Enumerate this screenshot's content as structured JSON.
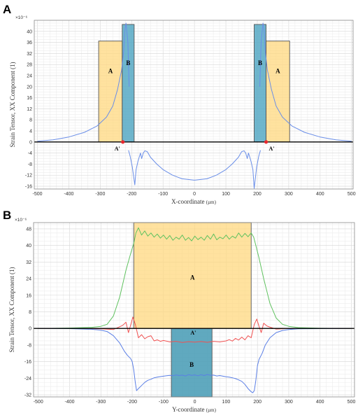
{
  "chart_data": [
    {
      "panel": "A",
      "type": "line",
      "title": "",
      "xlabel": "X-coordinate",
      "xunit": "(µm)",
      "ylabel": "Strain Tensor, XX Component (1)",
      "yexp": "×10⁻⁶",
      "xlim": [
        -510,
        505
      ],
      "ylim": [
        -17,
        44
      ],
      "xticks": [
        -500,
        -400,
        -300,
        -200,
        -100,
        0,
        100,
        200,
        300,
        400,
        500
      ],
      "yticks": [
        -16,
        -12,
        -8,
        -4,
        0,
        4,
        8,
        12,
        16,
        20,
        24,
        28,
        32,
        36,
        40
      ],
      "grid": true,
      "series": [
        {
          "color": "#6a8ee8",
          "x": [
            -500,
            -450,
            -400,
            -350,
            -310,
            -280,
            -260,
            -245,
            -232,
            -225,
            -222,
            -218,
            -212,
            -208
          ],
          "y": [
            0.3,
            0.8,
            1.8,
            3.5,
            5.8,
            9,
            13,
            19,
            26,
            33,
            40,
            43,
            36,
            20
          ]
        },
        {
          "color": "#6a8ee8",
          "x": [
            -210,
            -205,
            -198,
            -190,
            -186,
            -180,
            -172,
            -168,
            -163,
            -158,
            -150,
            -140,
            -120,
            -100,
            -70,
            -40,
            0,
            40,
            70,
            100,
            120,
            140,
            150,
            158,
            163,
            168,
            172,
            180,
            186,
            190,
            198,
            205,
            210
          ],
          "y": [
            -3,
            -5,
            -9,
            -15.5,
            -10,
            -7,
            -4,
            -6,
            -4,
            -3.2,
            -3.5,
            -5.5,
            -8,
            -10,
            -12,
            -13.3,
            -13.8,
            -13.3,
            -12,
            -10,
            -8,
            -5.5,
            -3.5,
            -3.2,
            -4,
            -6,
            -4,
            -7,
            -10,
            -16.8,
            -9,
            -5,
            -3
          ]
        },
        {
          "color": "#6a8ee8",
          "x": [
            208,
            212,
            218,
            222,
            225,
            232,
            245,
            260,
            280,
            310,
            350,
            400,
            450,
            500
          ],
          "y": [
            20,
            36,
            43,
            40,
            33,
            26,
            19,
            13,
            9,
            5.8,
            3.5,
            1.8,
            0.8,
            0.3
          ]
        }
      ],
      "regions": [
        {
          "label": "A",
          "x": [
            -305,
            -230
          ],
          "y": [
            0,
            36.5
          ],
          "fill": "#ffd77a",
          "opacity": 0.72
        },
        {
          "label": "B",
          "x": [
            -230,
            -192
          ],
          "y": [
            0,
            42.5
          ],
          "fill": "#56a9c4",
          "opacity": 0.85
        },
        {
          "label": "B",
          "x": [
            190,
            228
          ],
          "y": [
            0,
            42.5
          ],
          "fill": "#56a9c4",
          "opacity": 0.85
        },
        {
          "label": "A",
          "x": [
            228,
            303
          ],
          "y": [
            0,
            36.5
          ],
          "fill": "#ffd77a",
          "opacity": 0.72
        }
      ],
      "points": [
        {
          "label": "A'",
          "x": -228,
          "y": 0,
          "color": "#e8272e"
        },
        {
          "label": "A'",
          "x": 228,
          "y": 0,
          "color": "#e8272e"
        }
      ]
    },
    {
      "panel": "B",
      "type": "line",
      "title": "",
      "xlabel": "Y-coordinate",
      "xunit": "(µm)",
      "ylabel": "Strain Tensor, XX Component (1)",
      "yexp": "×10⁻⁶",
      "xlim": [
        -515,
        510
      ],
      "ylim": [
        -33,
        51
      ],
      "xticks": [
        -500,
        -400,
        -300,
        -200,
        -100,
        0,
        100,
        200,
        300,
        400,
        500
      ],
      "yticks": [
        -32,
        -24,
        -16,
        -8,
        0,
        8,
        16,
        24,
        32,
        40,
        48
      ],
      "grid": true,
      "series": [
        {
          "color": "#5fc25f",
          "x": [
            -500,
            -400,
            -330,
            -300,
            -280,
            -260,
            -240,
            -220,
            -205,
            -195,
            -188,
            -180,
            -170,
            -160,
            -150,
            -140,
            -130,
            -120,
            -110,
            -100,
            -90,
            -80,
            -70,
            -60,
            -50,
            -40,
            -30,
            -20,
            -10,
            0,
            10,
            20,
            30,
            40,
            50,
            60,
            70,
            80,
            90,
            100,
            110,
            120,
            130,
            140,
            150,
            160,
            170,
            180,
            188,
            195,
            205,
            220,
            240,
            260,
            280,
            300,
            330,
            400,
            500
          ],
          "y": [
            0,
            0.2,
            0.5,
            1,
            2,
            6,
            15,
            28,
            36,
            41,
            46,
            48.5,
            45,
            47,
            44.5,
            46,
            44,
            45.5,
            43.5,
            45,
            43,
            44.8,
            42.5,
            44,
            43,
            45,
            42.5,
            43.8,
            42.2,
            44.5,
            42.8,
            44,
            42.5,
            44.8,
            43,
            45.5,
            42.7,
            44,
            43.2,
            45,
            43,
            44.5,
            43.5,
            46,
            44,
            45.8,
            44.2,
            46,
            44,
            40,
            34,
            24,
            12,
            5,
            2,
            1,
            0.4,
            0.1,
            0
          ]
        },
        {
          "color": "#f05252",
          "x": [
            -500,
            -400,
            -300,
            -260,
            -240,
            -230,
            -220,
            -212,
            -205,
            -198,
            -190,
            -180,
            -170,
            -160,
            -150,
            -140,
            -130,
            -120,
            -110,
            -100,
            -80,
            -60,
            -40,
            -20,
            0,
            20,
            40,
            60,
            80,
            100,
            110,
            120,
            130,
            140,
            150,
            160,
            170,
            180,
            190,
            198,
            205,
            212,
            220,
            230,
            240,
            260,
            300,
            400,
            500
          ],
          "y": [
            0,
            0,
            -0.2,
            -0.5,
            0.8,
            1.5,
            3,
            -2,
            1.5,
            5.5,
            2,
            -4.5,
            -3,
            -5,
            -4,
            -3.5,
            -6,
            -5.5,
            -6.2,
            -5.8,
            -6.5,
            -6.2,
            -6.8,
            -6.4,
            -6.6,
            -6.3,
            -6.7,
            -6.2,
            -6.5,
            -6,
            -5.4,
            -6.1,
            -4.8,
            -5.6,
            -4.2,
            -5.5,
            -3.5,
            -4.5,
            2,
            4.5,
            1,
            -2,
            2.5,
            1.2,
            0.6,
            -0.3,
            0,
            0,
            0
          ]
        },
        {
          "color": "#5b7fe6",
          "x": [
            -500,
            -400,
            -330,
            -300,
            -280,
            -260,
            -240,
            -225,
            -215,
            -205,
            -200,
            -195,
            -190,
            -186,
            -180,
            -170,
            -160,
            -150,
            -140,
            -130,
            -120,
            -110,
            -100,
            -90,
            -80,
            -70,
            -60,
            -50,
            -40,
            -30,
            -20,
            -10,
            0,
            10,
            20,
            30,
            40,
            50,
            60,
            70,
            80,
            90,
            100,
            110,
            120,
            130,
            140,
            150,
            160,
            170,
            180,
            185,
            190,
            195,
            200,
            205,
            215,
            225,
            240,
            260,
            280,
            300,
            330,
            400,
            500
          ],
          "y": [
            0,
            -0.1,
            -0.4,
            -0.8,
            -1.5,
            -3.5,
            -7,
            -11,
            -13,
            -14.5,
            -16,
            -20,
            -26,
            -30,
            -29,
            -27.5,
            -26,
            -25,
            -24.5,
            -23.8,
            -23.5,
            -23.2,
            -23,
            -22.8,
            -22.6,
            -22.8,
            -22.4,
            -22.7,
            -22.5,
            -22.9,
            -22.3,
            -22.6,
            -22.4,
            -22.8,
            -22.3,
            -22.7,
            -22.2,
            -22.6,
            -22.5,
            -22.9,
            -22.7,
            -23,
            -23.3,
            -23.5,
            -23.8,
            -24.2,
            -24.8,
            -25.5,
            -27,
            -29,
            -30.5,
            -31,
            -30,
            -25,
            -18,
            -15,
            -12,
            -8,
            -4.5,
            -2,
            -1,
            -0.5,
            -0.2,
            -0.1,
            0
          ]
        }
      ],
      "regions": [
        {
          "label": "A",
          "x": [
            -195,
            180
          ],
          "y": [
            0,
            51
          ],
          "fill": "#ffd77a",
          "opacity": 0.72
        },
        {
          "label": "B",
          "x": [
            -75,
            55
          ],
          "y": [
            -33,
            0
          ],
          "fill": "#4fa0b8",
          "opacity": 0.9
        }
      ],
      "points": [
        {
          "label": "A'",
          "x": -5,
          "y": -2,
          "color": "none"
        }
      ]
    }
  ]
}
